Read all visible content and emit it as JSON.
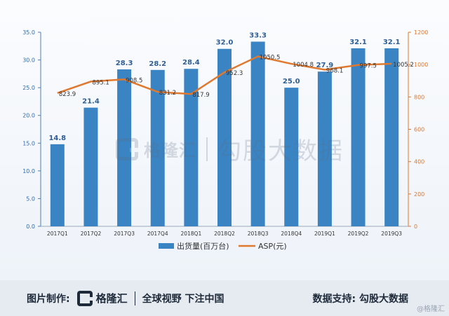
{
  "chart_data": {
    "type": "bar",
    "categories": [
      "2017Q1",
      "2017Q2",
      "2017Q3",
      "2017Q4",
      "2018Q1",
      "2018Q2",
      "2018Q3",
      "2018Q4",
      "2019Q1",
      "2019Q2",
      "2019Q3"
    ],
    "series": [
      {
        "name": "出货量(百万台)",
        "type": "bar",
        "axis": "left",
        "color": "#3a84c4",
        "values": [
          14.8,
          21.4,
          28.3,
          28.2,
          28.4,
          32.0,
          33.3,
          25.0,
          27.9,
          32.1,
          32.1
        ],
        "labels": [
          "14.8",
          "21.4",
          "28.3",
          "28.2",
          "28.4",
          "32.0",
          "33.3",
          "25.0",
          "27.9",
          "32.1",
          "32.1"
        ]
      },
      {
        "name": "ASP(元)",
        "type": "line",
        "axis": "right",
        "color": "#e0782e",
        "values": [
          823.9,
          895.1,
          908.5,
          831.2,
          817.9,
          952.3,
          1050.5,
          1004.8,
          968.1,
          997.5,
          1005.2
        ],
        "labels": [
          "823.9",
          "895.1",
          "908.5",
          "831.2",
          "817.9",
          "952.3",
          "1050.5",
          "1004.8",
          "968.1",
          "997.5",
          "1005.2"
        ]
      }
    ],
    "left_axis": {
      "min": 0,
      "max": 35,
      "ticks": [
        "0.0",
        "5.0",
        "10.0",
        "15.0",
        "20.0",
        "25.0",
        "30.0",
        "35.0"
      ]
    },
    "right_axis": {
      "min": 0,
      "max": 1200,
      "ticks": [
        "0",
        "200",
        "400",
        "600",
        "800",
        "1000",
        "1200"
      ]
    },
    "grid": false,
    "legend_position": "bottom"
  },
  "watermark": {
    "brand": "格隆汇",
    "text": "勾股大数据"
  },
  "footer": {
    "made_by_label": "图片制作:",
    "brand": "格隆汇",
    "slogan": "全球视野 下注中国",
    "data_support": "数据支持: 勾股大数据",
    "corner": "@格隆汇"
  }
}
